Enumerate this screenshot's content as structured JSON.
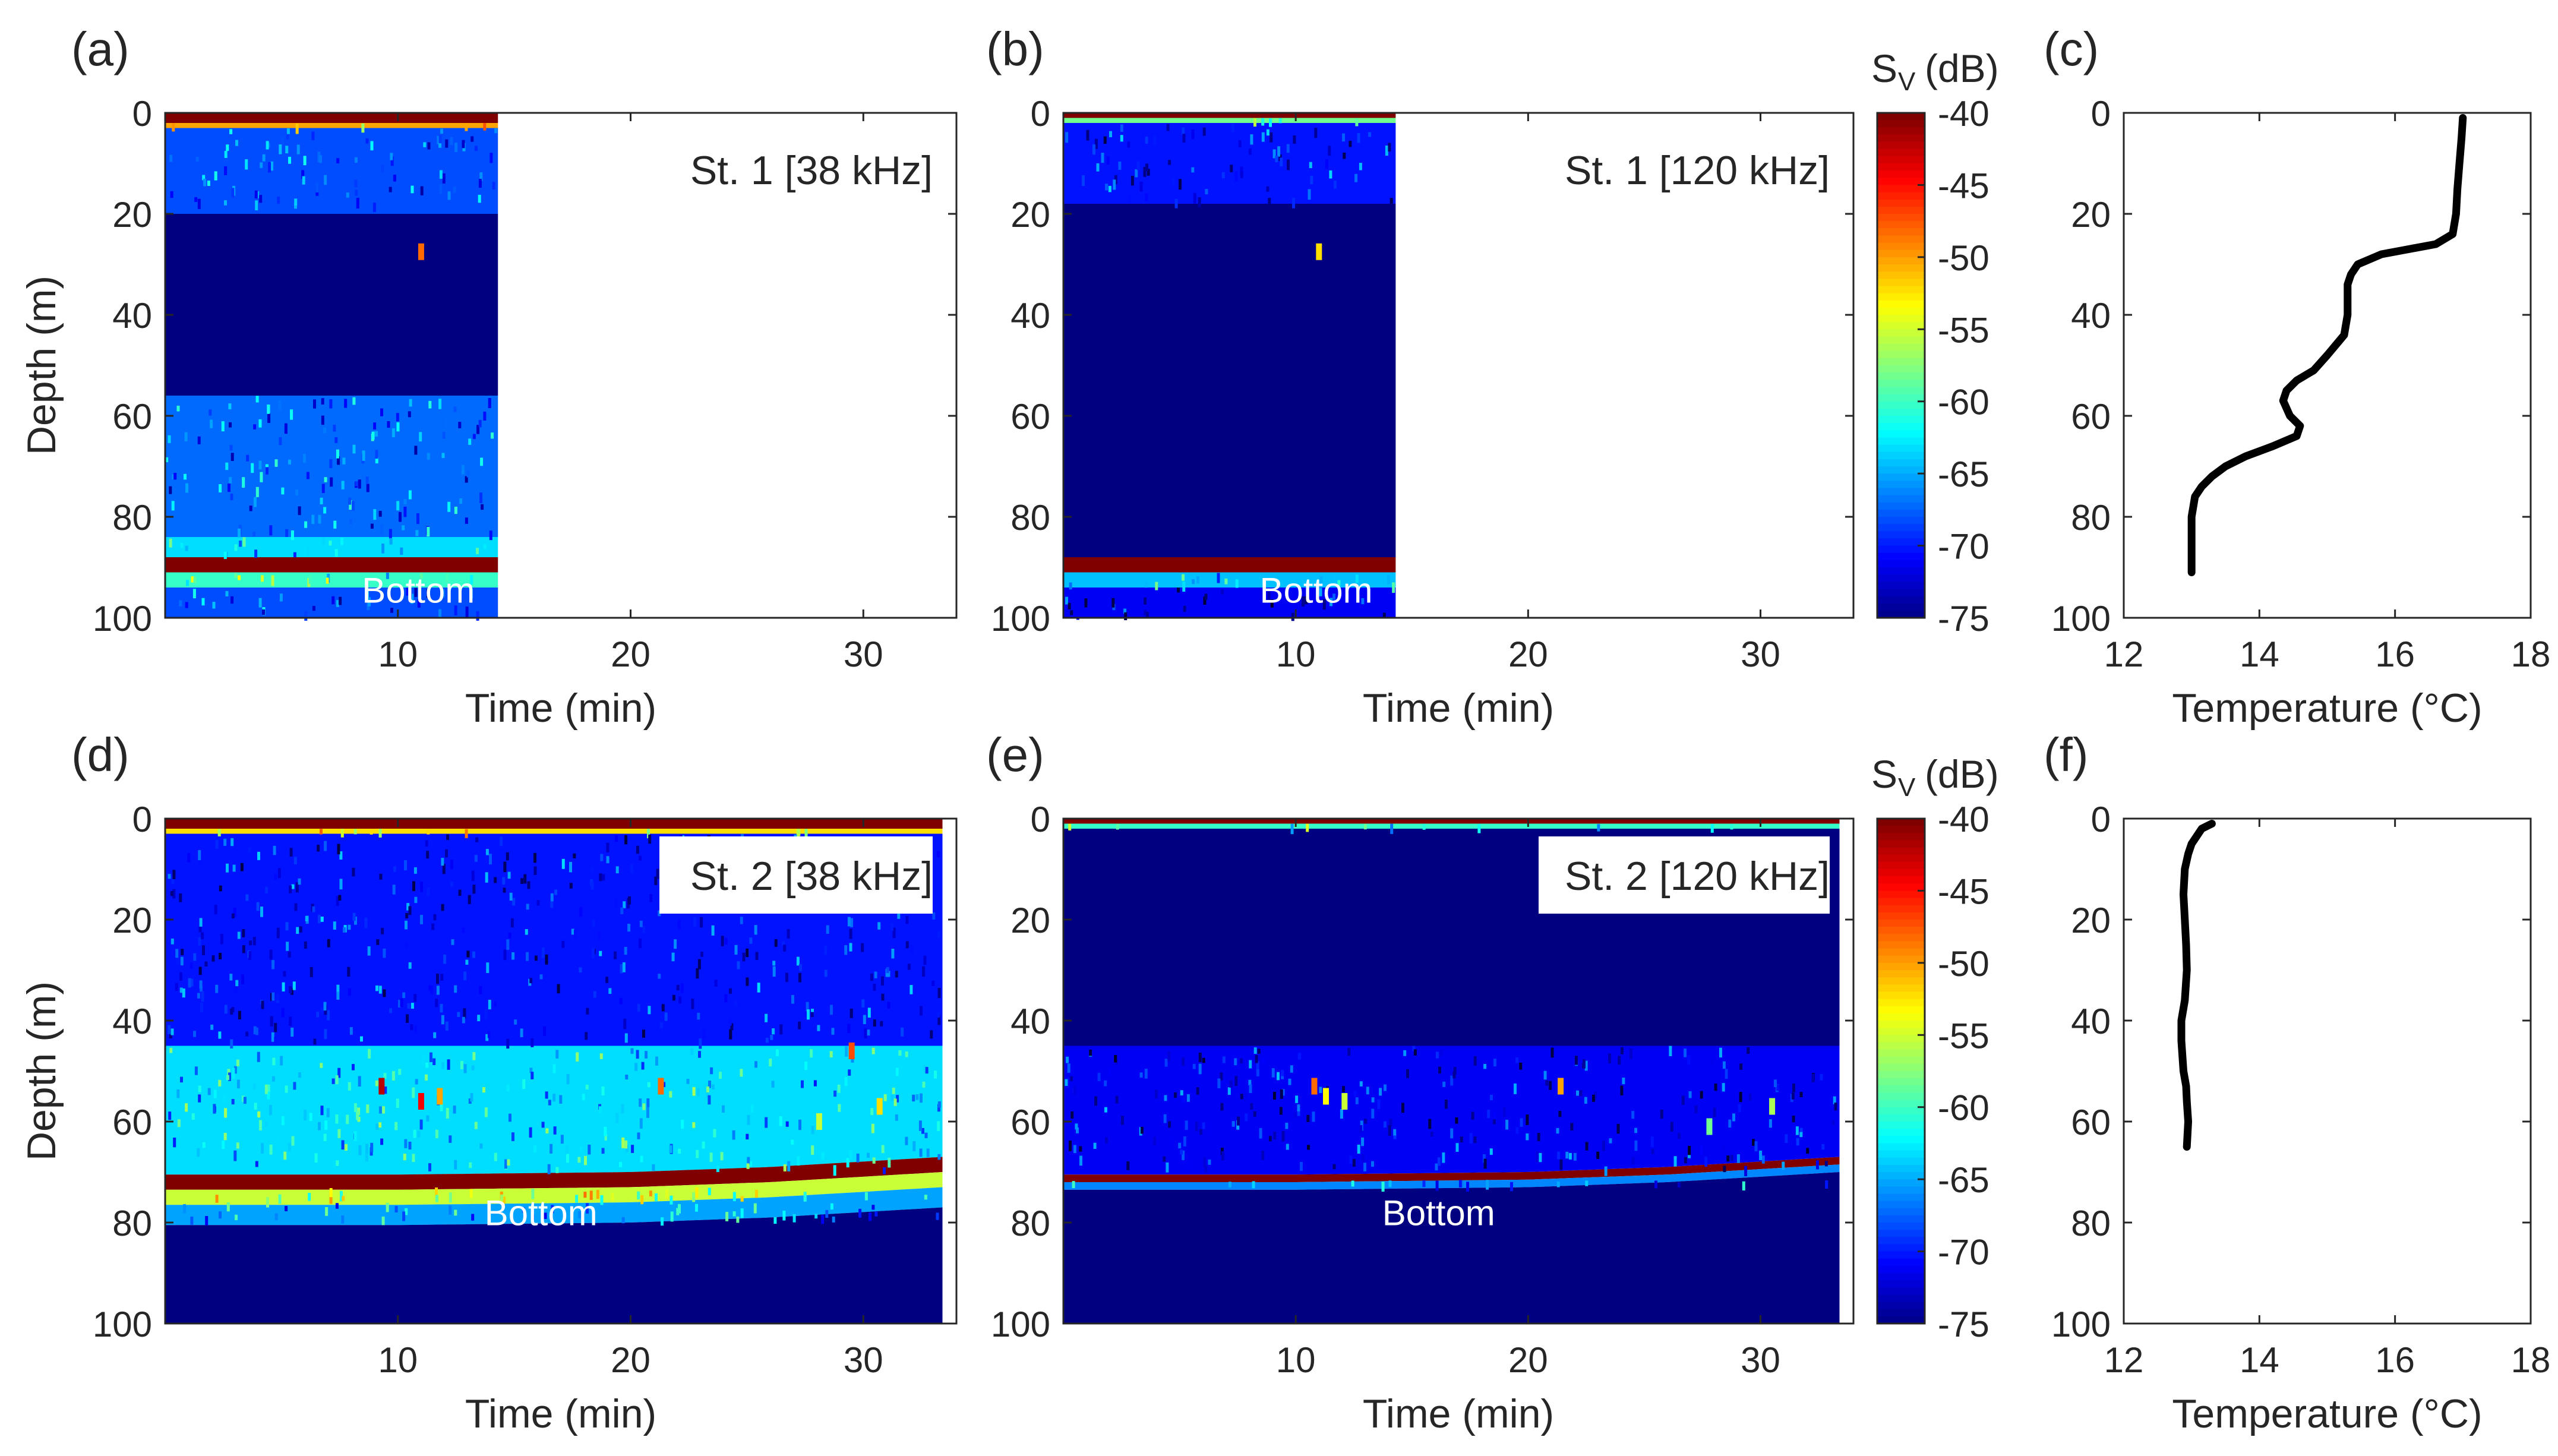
{
  "chart_data": [
    {
      "panel": "(a)",
      "type": "heatmap",
      "annotation": "St. 1 [38 kHz]",
      "xlabel": "Time (min)",
      "ylabel": "Depth (m)",
      "xlim": [
        0,
        34
      ],
      "ylim": [
        0,
        100
      ],
      "xticks": [
        10,
        20,
        30
      ],
      "yticks": [
        0,
        20,
        40,
        60,
        80,
        100
      ],
      "data_xlim": [
        0,
        14.3
      ],
      "colormap": "jet",
      "clim": [
        -75,
        -40
      ],
      "bottom_label": "Bottom",
      "layers": [
        {
          "depth": [
            0,
            2
          ],
          "sv": -40
        },
        {
          "depth": [
            2,
            3
          ],
          "sv": -50
        },
        {
          "depth": [
            3,
            20
          ],
          "sv": -68
        },
        {
          "depth": [
            20,
            56
          ],
          "sv": -75
        },
        {
          "depth": [
            56,
            84
          ],
          "sv": -67
        },
        {
          "depth": [
            84,
            88
          ],
          "sv": -63
        },
        {
          "depth": [
            88,
            91
          ],
          "sv": -40
        },
        {
          "depth": [
            91,
            94
          ],
          "sv": -60
        },
        {
          "depth": [
            94,
            100
          ],
          "sv": -68
        }
      ],
      "targets": [
        {
          "t": 11,
          "depth": 27.5,
          "sv": -48
        }
      ]
    },
    {
      "panel": "(b)",
      "type": "heatmap",
      "annotation": "St. 1 [120 kHz]",
      "xlabel": "Time (min)",
      "ylabel": "",
      "xlim": [
        0,
        34
      ],
      "ylim": [
        0,
        100
      ],
      "xticks": [
        10,
        20,
        30
      ],
      "yticks": [
        0,
        20,
        40,
        60,
        80,
        100
      ],
      "data_xlim": [
        0,
        14.3
      ],
      "colormap": "jet",
      "clim": [
        -75,
        -40
      ],
      "bottom_label": "Bottom",
      "layers": [
        {
          "depth": [
            0,
            1
          ],
          "sv": -40
        },
        {
          "depth": [
            1,
            2
          ],
          "sv": -58
        },
        {
          "depth": [
            2,
            18
          ],
          "sv": -70
        },
        {
          "depth": [
            18,
            88
          ],
          "sv": -75
        },
        {
          "depth": [
            88,
            91
          ],
          "sv": -40
        },
        {
          "depth": [
            91,
            94
          ],
          "sv": -64
        },
        {
          "depth": [
            94,
            100
          ],
          "sv": -71
        }
      ],
      "targets": [
        {
          "t": 11,
          "depth": 27.5,
          "sv": -52
        }
      ]
    },
    {
      "panel": "(c)",
      "type": "line",
      "xlabel": "Temperature (°C)",
      "ylabel": "",
      "xlim": [
        12,
        18
      ],
      "ylim": [
        0,
        100
      ],
      "xticks": [
        12,
        14,
        16,
        18
      ],
      "yticks": [
        0,
        20,
        40,
        60,
        80,
        100
      ],
      "series": [
        {
          "x": [
            17.0,
            16.98,
            16.95,
            16.92,
            16.9,
            16.85,
            16.6,
            16.2,
            15.8,
            15.45,
            15.35,
            15.3,
            15.3,
            15.25,
            15.0,
            14.8,
            14.55,
            14.4,
            14.35,
            14.45,
            14.6,
            14.55,
            14.2,
            13.8,
            13.5,
            13.3,
            13.15,
            13.05,
            13.0,
            13.0,
            13.0
          ],
          "y": [
            1,
            5,
            10,
            15,
            20,
            24,
            26,
            27,
            28,
            30,
            32,
            34,
            40,
            44,
            48,
            51,
            53,
            55,
            57,
            60,
            62,
            64,
            66,
            68,
            70,
            72,
            74,
            76,
            80,
            86,
            91
          ]
        }
      ]
    },
    {
      "panel": "(d)",
      "type": "heatmap",
      "annotation": "St. 2 [38 kHz]",
      "xlabel": "Time (min)",
      "ylabel": "Depth (m)",
      "xlim": [
        0,
        34
      ],
      "ylim": [
        0,
        100
      ],
      "xticks": [
        10,
        20,
        30
      ],
      "yticks": [
        0,
        20,
        40,
        60,
        80,
        100
      ],
      "data_xlim": [
        0,
        33.4
      ],
      "colormap": "jet",
      "clim": [
        -75,
        -40
      ],
      "bottom_label": "Bottom",
      "seabed_depth": {
        "t": [
          0,
          10,
          20,
          26,
          33.4
        ],
        "depth": [
          70.5,
          70.5,
          70,
          69,
          67
        ]
      },
      "layers": [
        {
          "depth": [
            0,
            2
          ],
          "sv": -40
        },
        {
          "depth": [
            2,
            3
          ],
          "sv": -52
        },
        {
          "depth": [
            3,
            45
          ],
          "sv": -70
        },
        {
          "depth": [
            45,
            70
          ],
          "sv": -63
        },
        {
          "depth": [
            70,
            73
          ],
          "sv": -40
        },
        {
          "depth": [
            73,
            76
          ],
          "sv": -55
        },
        {
          "depth": [
            76,
            80
          ],
          "sv": -65
        },
        {
          "depth": [
            80,
            100
          ],
          "sv": -75
        }
      ],
      "targets": [
        {
          "t": 9.3,
          "depth": 53,
          "sv": -42
        },
        {
          "t": 11.0,
          "depth": 56,
          "sv": -44
        },
        {
          "t": 11.8,
          "depth": 55,
          "sv": -50
        },
        {
          "t": 21.3,
          "depth": 53,
          "sv": -48
        },
        {
          "t": 29.5,
          "depth": 46,
          "sv": -47
        },
        {
          "t": 30.7,
          "depth": 57,
          "sv": -52
        },
        {
          "t": 28.1,
          "depth": 60,
          "sv": -55
        }
      ]
    },
    {
      "panel": "(e)",
      "type": "heatmap",
      "annotation": "St. 2 [120 kHz]",
      "xlabel": "Time (min)",
      "ylabel": "",
      "xlim": [
        0,
        34
      ],
      "ylim": [
        0,
        100
      ],
      "xticks": [
        10,
        20,
        30
      ],
      "yticks": [
        0,
        20,
        40,
        60,
        80,
        100
      ],
      "data_xlim": [
        0,
        33.4
      ],
      "colormap": "jet",
      "clim": [
        -75,
        -40
      ],
      "bottom_label": "Bottom",
      "seabed_depth": {
        "t": [
          0,
          10,
          20,
          26,
          33.4
        ],
        "depth": [
          70.5,
          70.5,
          70,
          69,
          67
        ]
      },
      "layers": [
        {
          "depth": [
            0,
            1
          ],
          "sv": -40
        },
        {
          "depth": [
            1,
            2
          ],
          "sv": -60
        },
        {
          "depth": [
            2,
            45
          ],
          "sv": -75
        },
        {
          "depth": [
            45,
            70
          ],
          "sv": -71
        },
        {
          "depth": [
            70,
            71.5
          ],
          "sv": -40
        },
        {
          "depth": [
            71.5,
            73
          ],
          "sv": -66
        },
        {
          "depth": [
            73,
            100
          ],
          "sv": -75
        }
      ],
      "targets": [
        {
          "t": 10.8,
          "depth": 53,
          "sv": -48
        },
        {
          "t": 11.3,
          "depth": 55,
          "sv": -53
        },
        {
          "t": 12.1,
          "depth": 56,
          "sv": -55
        },
        {
          "t": 21.4,
          "depth": 53,
          "sv": -50
        },
        {
          "t": 30.5,
          "depth": 57,
          "sv": -56
        },
        {
          "t": 27.8,
          "depth": 61,
          "sv": -58
        }
      ]
    },
    {
      "panel": "(f)",
      "type": "line",
      "xlabel": "Temperature (°C)",
      "ylabel": "",
      "xlim": [
        12,
        18
      ],
      "ylim": [
        0,
        100
      ],
      "xticks": [
        12,
        14,
        16,
        18
      ],
      "yticks": [
        0,
        20,
        40,
        60,
        80,
        100
      ],
      "series": [
        {
          "x": [
            13.3,
            13.15,
            13.0,
            12.95,
            12.9,
            12.88,
            12.9,
            12.92,
            12.93,
            12.9,
            12.85,
            12.85,
            12.88,
            12.92,
            12.93,
            12.95,
            12.93
          ],
          "y": [
            1,
            2,
            5,
            7,
            10,
            15,
            20,
            25,
            30,
            36,
            40,
            44,
            50,
            53,
            56,
            60,
            65
          ]
        }
      ]
    }
  ],
  "colorbars": [
    {
      "title": "S",
      "subscript": "V",
      "unit": "(dB)",
      "ticks": [
        -40,
        -45,
        -50,
        -55,
        -60,
        -65,
        -70,
        -75
      ],
      "range": [
        -75,
        -40
      ]
    },
    {
      "title": "S",
      "subscript": "V",
      "unit": "(dB)",
      "ticks": [
        -40,
        -45,
        -50,
        -55,
        -60,
        -65,
        -70,
        -75
      ],
      "range": [
        -75,
        -40
      ]
    }
  ]
}
